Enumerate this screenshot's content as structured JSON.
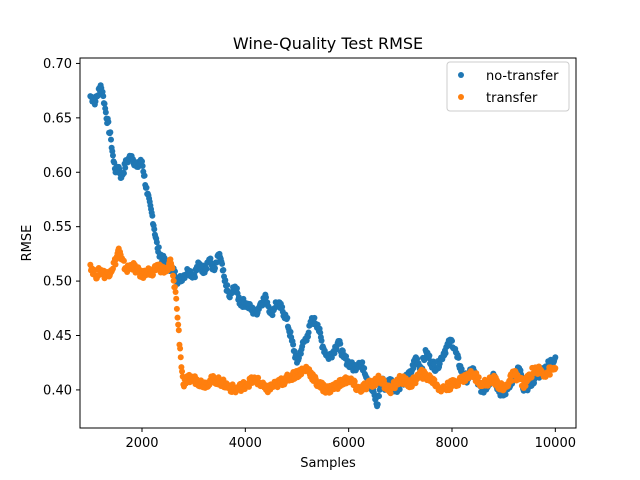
{
  "chart_data": {
    "type": "scatter",
    "title": "Wine-Quality Test RMSE",
    "xlabel": "Samples",
    "ylabel": "RMSE",
    "xlim": [
      800,
      10400
    ],
    "ylim": [
      0.365,
      0.705
    ],
    "xticks": [
      2000,
      4000,
      6000,
      8000,
      10000
    ],
    "xtick_labels": [
      "2000",
      "4000",
      "6000",
      "8000",
      "10000"
    ],
    "yticks": [
      0.4,
      0.45,
      0.5,
      0.55,
      0.6,
      0.65,
      0.7
    ],
    "ytick_labels": [
      "0.40",
      "0.45",
      "0.50",
      "0.55",
      "0.60",
      "0.65",
      "0.70"
    ],
    "grid": false,
    "legend_position": "top-right",
    "series": [
      {
        "name": "no-transfer",
        "color": "#1f77b4",
        "x": [
          1000,
          1100,
          1200,
          1250,
          1300,
          1400,
          1450,
          1500,
          1550,
          1600,
          1700,
          1800,
          1900,
          2000,
          2100,
          2200,
          2300,
          2400,
          2500,
          2600,
          2700,
          2800,
          2900,
          3000,
          3100,
          3200,
          3300,
          3400,
          3500,
          3600,
          3700,
          3800,
          3900,
          4000,
          4100,
          4200,
          4300,
          4400,
          4500,
          4600,
          4700,
          4800,
          4900,
          5000,
          5100,
          5200,
          5300,
          5400,
          5500,
          5600,
          5700,
          5800,
          5900,
          6000,
          6100,
          6200,
          6300,
          6400,
          6500,
          6550,
          6600,
          6650,
          6700,
          6800,
          6900,
          7000,
          7100,
          7200,
          7300,
          7400,
          7500,
          7600,
          7700,
          7800,
          7900,
          8000,
          8100,
          8200,
          8300,
          8400,
          8500,
          8600,
          8700,
          8800,
          8900,
          9000,
          9100,
          9200,
          9300,
          9400,
          9500,
          9600,
          9700,
          9800,
          9900,
          10000
        ],
        "y": [
          0.67,
          0.665,
          0.68,
          0.67,
          0.655,
          0.63,
          0.61,
          0.6,
          0.605,
          0.595,
          0.61,
          0.615,
          0.605,
          0.61,
          0.58,
          0.56,
          0.53,
          0.52,
          0.515,
          0.51,
          0.5,
          0.505,
          0.51,
          0.505,
          0.515,
          0.51,
          0.52,
          0.51,
          0.525,
          0.5,
          0.485,
          0.495,
          0.48,
          0.48,
          0.475,
          0.47,
          0.48,
          0.485,
          0.47,
          0.48,
          0.475,
          0.465,
          0.445,
          0.425,
          0.44,
          0.45,
          0.465,
          0.46,
          0.44,
          0.43,
          0.435,
          0.445,
          0.43,
          0.425,
          0.42,
          0.425,
          0.42,
          0.405,
          0.395,
          0.385,
          0.4,
          0.41,
          0.4,
          0.41,
          0.4,
          0.405,
          0.41,
          0.415,
          0.43,
          0.42,
          0.435,
          0.425,
          0.42,
          0.43,
          0.44,
          0.445,
          0.43,
          0.415,
          0.41,
          0.42,
          0.405,
          0.4,
          0.405,
          0.415,
          0.4,
          0.395,
          0.405,
          0.41,
          0.42,
          0.4,
          0.405,
          0.41,
          0.415,
          0.42,
          0.425,
          0.43
        ]
      },
      {
        "name": "transfer",
        "color": "#ff7f0e",
        "x": [
          1000,
          1100,
          1200,
          1300,
          1400,
          1500,
          1550,
          1600,
          1700,
          1800,
          1900,
          2000,
          2100,
          2200,
          2300,
          2400,
          2500,
          2550,
          2600,
          2650,
          2700,
          2750,
          2800,
          2900,
          3000,
          3200,
          3400,
          3600,
          3800,
          4000,
          4200,
          4400,
          4600,
          4800,
          5000,
          5200,
          5400,
          5600,
          5800,
          6000,
          6200,
          6400,
          6600,
          6800,
          7000,
          7200,
          7400,
          7600,
          7800,
          8000,
          8200,
          8400,
          8600,
          8800,
          9000,
          9200,
          9400,
          9600,
          9800,
          10000
        ],
        "y": [
          0.515,
          0.505,
          0.51,
          0.505,
          0.51,
          0.52,
          0.53,
          0.52,
          0.51,
          0.515,
          0.51,
          0.505,
          0.51,
          0.505,
          0.515,
          0.51,
          0.51,
          0.52,
          0.505,
          0.49,
          0.46,
          0.43,
          0.405,
          0.41,
          0.41,
          0.405,
          0.41,
          0.405,
          0.4,
          0.405,
          0.41,
          0.4,
          0.405,
          0.41,
          0.415,
          0.42,
          0.405,
          0.4,
          0.405,
          0.41,
          0.4,
          0.405,
          0.41,
          0.4,
          0.41,
          0.405,
          0.415,
          0.41,
          0.4,
          0.405,
          0.41,
          0.415,
          0.405,
          0.41,
          0.4,
          0.415,
          0.405,
          0.42,
          0.415,
          0.42
        ]
      }
    ]
  }
}
